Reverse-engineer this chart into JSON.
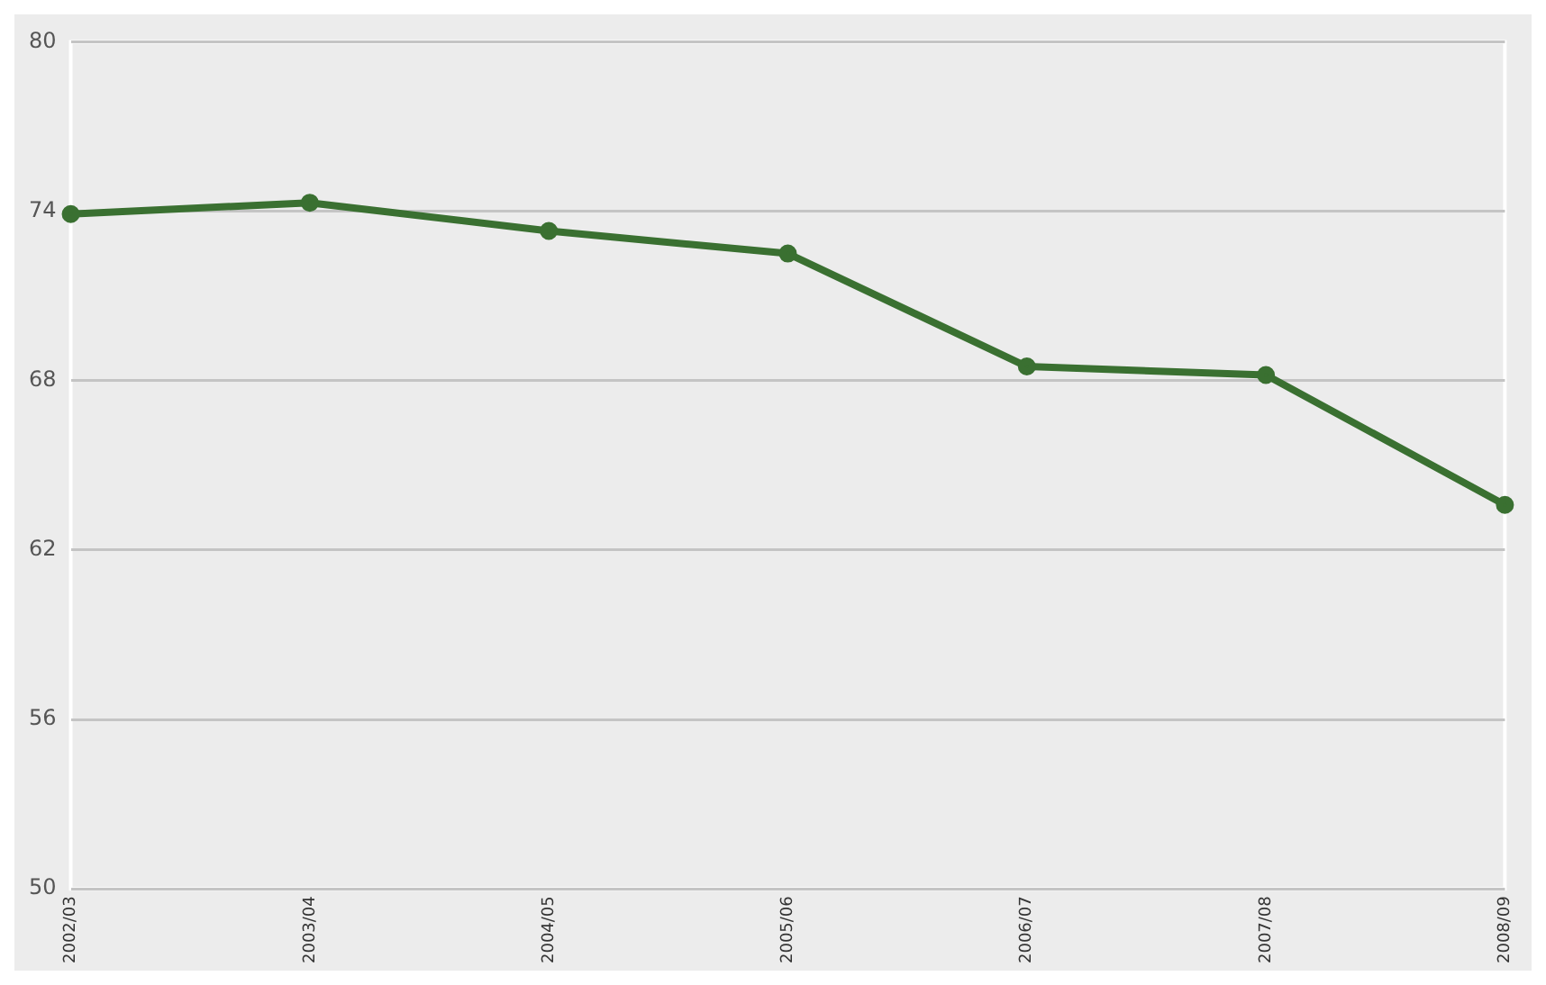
{
  "chart_data": {
    "type": "line",
    "categories": [
      "2002/03",
      "2003/04",
      "2004/05",
      "2005/06",
      "2006/07",
      "2007/08",
      "2008/09"
    ],
    "series": [
      {
        "color": "#3a7031",
        "values": [
          73.9,
          74.3,
          73.3,
          72.5,
          68.5,
          68.2,
          63.6
        ]
      }
    ],
    "ylim": [
      50,
      80
    ],
    "yticks": [
      50,
      56,
      62,
      68,
      74,
      80
    ],
    "grid": "y",
    "marker": "circle",
    "line_style": "solid",
    "legend": false
  }
}
